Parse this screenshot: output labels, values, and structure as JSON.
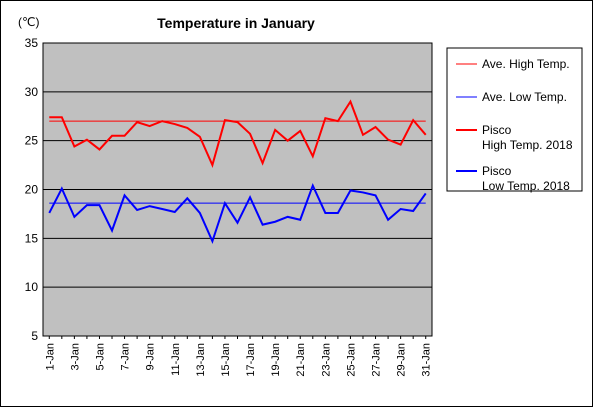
{
  "chart_data": {
    "type": "line",
    "title": "Temperature in January",
    "unit_label": "(℃)",
    "ylim": [
      5,
      35
    ],
    "yticks": [
      5,
      10,
      15,
      20,
      25,
      30,
      35
    ],
    "grid": "horizontal",
    "legend_position": "right",
    "x": [
      "1-Jan",
      "2-Jan",
      "3-Jan",
      "4-Jan",
      "5-Jan",
      "6-Jan",
      "7-Jan",
      "8-Jan",
      "9-Jan",
      "10-Jan",
      "11-Jan",
      "12-Jan",
      "13-Jan",
      "14-Jan",
      "15-Jan",
      "16-Jan",
      "17-Jan",
      "18-Jan",
      "19-Jan",
      "20-Jan",
      "21-Jan",
      "22-Jan",
      "23-Jan",
      "24-Jan",
      "25-Jan",
      "26-Jan",
      "27-Jan",
      "28-Jan",
      "29-Jan",
      "30-Jan",
      "31-Jan"
    ],
    "x_tick_labels": [
      "1-Jan",
      "3-Jan",
      "5-Jan",
      "7-Jan",
      "9-Jan",
      "11-Jan",
      "13-Jan",
      "15-Jan",
      "17-Jan",
      "19-Jan",
      "21-Jan",
      "23-Jan",
      "25-Jan",
      "27-Jan",
      "29-Jan",
      "31-Jan"
    ],
    "series": [
      {
        "name": "Ave. High Temp.",
        "color": "#ff0000",
        "width": 1,
        "constant": 27.0
      },
      {
        "name": "Ave. Low Temp.",
        "color": "#0000ff",
        "width": 1,
        "constant": 18.6
      },
      {
        "name": "Pisco\nHigh Temp. 2018",
        "color": "#ff0000",
        "width": 2,
        "values": [
          27.4,
          27.4,
          24.4,
          25.1,
          24.1,
          25.5,
          25.5,
          26.9,
          26.5,
          27.0,
          26.7,
          26.3,
          25.4,
          22.5,
          27.1,
          26.9,
          25.7,
          22.7,
          26.1,
          25.0,
          26.0,
          23.4,
          27.3,
          27.0,
          29.0,
          25.6,
          26.4,
          25.1,
          24.6,
          27.1,
          25.6
        ]
      },
      {
        "name": "Pisco\nLow Temp. 2018",
        "color": "#0000ff",
        "width": 2,
        "values": [
          17.6,
          20.1,
          17.2,
          18.4,
          18.4,
          15.8,
          19.4,
          17.9,
          18.3,
          18.0,
          17.7,
          19.1,
          17.6,
          14.7,
          18.6,
          16.6,
          19.2,
          16.4,
          16.7,
          17.2,
          16.9,
          20.4,
          17.6,
          17.6,
          19.9,
          19.7,
          19.4,
          16.9,
          18.0,
          17.8,
          19.6
        ]
      }
    ]
  }
}
